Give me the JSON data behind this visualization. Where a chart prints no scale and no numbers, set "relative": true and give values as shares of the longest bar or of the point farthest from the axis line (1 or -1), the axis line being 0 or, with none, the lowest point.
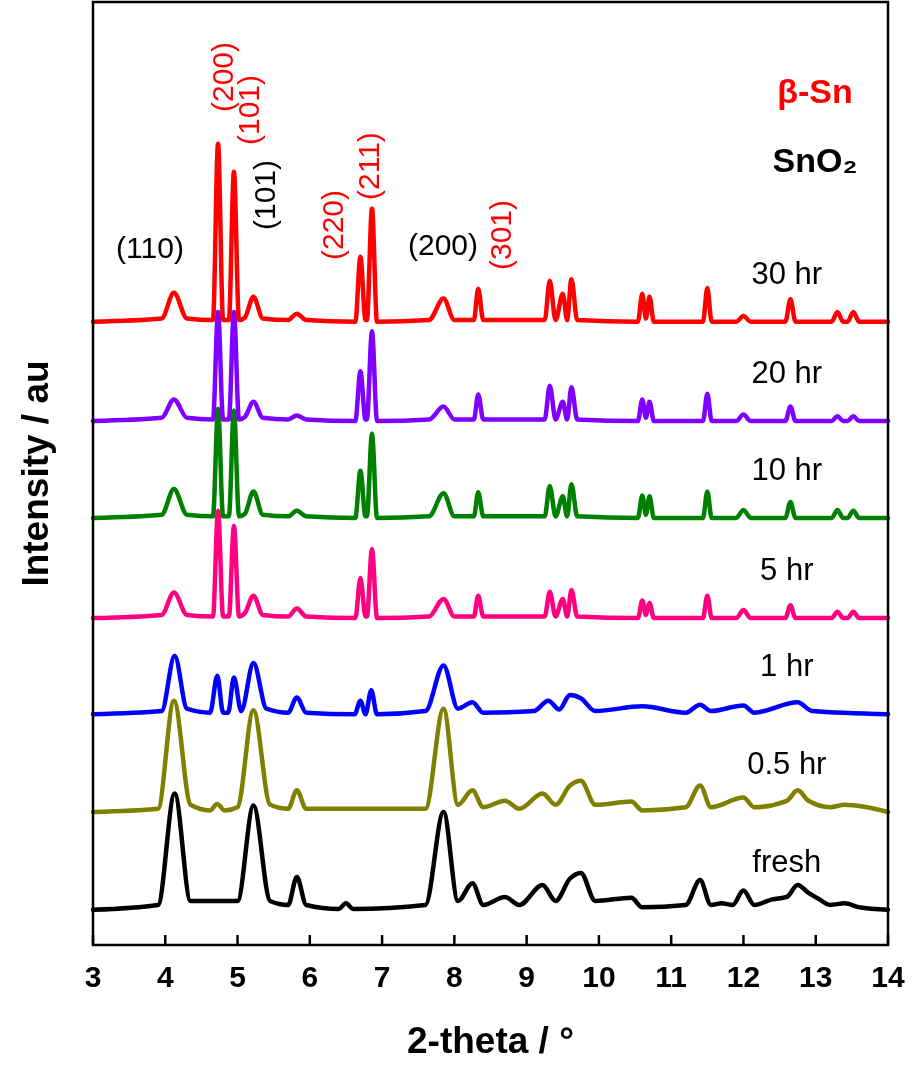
{
  "chart_data": {
    "type": "line",
    "relative": true,
    "xlabel": "2-theta / °",
    "ylabel": "Intensity / au",
    "xlim": [
      3,
      14
    ],
    "xticks": [
      3,
      4,
      5,
      6,
      7,
      8,
      9,
      10,
      11,
      12,
      13,
      14
    ],
    "grid": false,
    "legend": false,
    "marker": "none",
    "line_style": "solid",
    "tick_labels": "x",
    "series": [
      {
        "name": "fresh",
        "color": "#000000",
        "x": [
          3,
          3.9,
          4.13,
          4.35,
          5,
          5.22,
          5.45,
          5.7,
          5.82,
          5.95,
          6.4,
          6.5,
          6.6,
          7.6,
          7.85,
          8.05,
          8.25,
          8.4,
          8.7,
          8.9,
          9.22,
          9.4,
          9.6,
          9.75,
          9.95,
          10.45,
          10.6,
          11.2,
          11.4,
          11.55,
          11.7,
          11.85,
          12,
          12.15,
          12.4,
          12.6,
          12.75,
          12.9,
          13.05,
          13.2,
          13.4,
          13.6,
          14
        ],
        "values": [
          0.044,
          0.05,
          0.189,
          0.055,
          0.055,
          0.174,
          0.055,
          0.05,
          0.085,
          0.05,
          0.045,
          0.052,
          0.045,
          0.05,
          0.166,
          0.055,
          0.077,
          0.05,
          0.06,
          0.05,
          0.075,
          0.055,
          0.083,
          0.09,
          0.055,
          0.059,
          0.047,
          0.05,
          0.081,
          0.05,
          0.052,
          0.05,
          0.068,
          0.05,
          0.057,
          0.06,
          0.075,
          0.065,
          0.057,
          0.05,
          0.052,
          0.047,
          0.044
        ]
      },
      {
        "name": "0.5 hr",
        "color": "#808000",
        "x": [
          3,
          3.9,
          4.12,
          4.35,
          4.62,
          4.72,
          4.82,
          5,
          5.22,
          5.45,
          5.7,
          5.82,
          5.95,
          6.5,
          7.6,
          7.85,
          8.05,
          8.25,
          8.4,
          8.7,
          8.9,
          9.22,
          9.4,
          9.6,
          9.75,
          9.95,
          10.45,
          10.6,
          11.2,
          11.4,
          11.55,
          12,
          12.15,
          12.6,
          12.75,
          12.9,
          13.2,
          13.4,
          14
        ],
        "values": [
          0.166,
          0.17,
          0.305,
          0.175,
          0.168,
          0.176,
          0.168,
          0.172,
          0.293,
          0.175,
          0.17,
          0.193,
          0.17,
          0.17,
          0.17,
          0.295,
          0.175,
          0.193,
          0.172,
          0.18,
          0.17,
          0.189,
          0.175,
          0.199,
          0.205,
          0.175,
          0.179,
          0.168,
          0.172,
          0.199,
          0.172,
          0.184,
          0.172,
          0.18,
          0.193,
          0.18,
          0.172,
          0.175,
          0.166
        ]
      },
      {
        "name": "1 hr",
        "color": "#0000ff",
        "x": [
          3,
          3.95,
          4.13,
          4.3,
          4.62,
          4.72,
          4.8,
          4.87,
          4.95,
          5.05,
          5.22,
          5.4,
          5.7,
          5.82,
          5.95,
          6.62,
          6.7,
          6.77,
          6.85,
          6.93,
          7.6,
          7.85,
          8.05,
          8.25,
          8.4,
          9.1,
          9.3,
          9.45,
          9.6,
          9.75,
          9.95,
          10.6,
          11.2,
          11.4,
          11.55,
          12,
          12.15,
          12.75,
          12.95,
          14
        ],
        "values": [
          0.288,
          0.292,
          0.361,
          0.295,
          0.29,
          0.336,
          0.29,
          0.29,
          0.334,
          0.292,
          0.352,
          0.295,
          0.29,
          0.309,
          0.29,
          0.288,
          0.305,
          0.288,
          0.318,
          0.288,
          0.292,
          0.349,
          0.295,
          0.303,
          0.29,
          0.292,
          0.305,
          0.294,
          0.312,
          0.308,
          0.292,
          0.298,
          0.29,
          0.3,
          0.292,
          0.299,
          0.29,
          0.303,
          0.292,
          0.288
        ]
      },
      {
        "name": "5 hr",
        "color": "#ff0080",
        "x": [
          3,
          3.95,
          4.12,
          4.3,
          4.66,
          4.73,
          4.8,
          4.88,
          4.95,
          5.02,
          5.1,
          5.22,
          5.35,
          5.7,
          5.82,
          5.95,
          6.63,
          6.7,
          6.77,
          6.79,
          6.86,
          6.93,
          7.65,
          7.85,
          8,
          8.27,
          8.33,
          8.4,
          9.25,
          9.32,
          9.4,
          9.5,
          9.56,
          9.62,
          9.7,
          10.54,
          10.6,
          10.65,
          10.7,
          10.76,
          11.44,
          11.5,
          11.56,
          11.9,
          12,
          12.1,
          12.58,
          12.65,
          12.72,
          13.22,
          13.3,
          13.38,
          13.44,
          13.52,
          13.6,
          14
        ],
        "values": [
          0.408,
          0.412,
          0.44,
          0.412,
          0.41,
          0.542,
          0.41,
          0.41,
          0.523,
          0.41,
          0.414,
          0.436,
          0.412,
          0.41,
          0.42,
          0.41,
          0.408,
          0.458,
          0.41,
          0.41,
          0.494,
          0.408,
          0.41,
          0.432,
          0.41,
          0.41,
          0.436,
          0.41,
          0.41,
          0.441,
          0.41,
          0.432,
          0.41,
          0.443,
          0.41,
          0.408,
          0.43,
          0.412,
          0.427,
          0.408,
          0.408,
          0.436,
          0.408,
          0.408,
          0.418,
          0.408,
          0.408,
          0.424,
          0.408,
          0.408,
          0.416,
          0.408,
          0.408,
          0.416,
          0.408,
          0.408
        ]
      },
      {
        "name": "10 hr",
        "color": "#008000",
        "x": [
          3,
          3.95,
          4.12,
          4.3,
          4.66,
          4.73,
          4.8,
          4.88,
          4.95,
          5.02,
          5.1,
          5.22,
          5.35,
          5.7,
          5.82,
          5.95,
          6.63,
          6.7,
          6.77,
          6.79,
          6.86,
          6.93,
          7.65,
          7.85,
          8,
          8.27,
          8.33,
          8.4,
          9.25,
          9.32,
          9.4,
          9.5,
          9.56,
          9.62,
          9.7,
          10.54,
          10.6,
          10.65,
          10.7,
          10.76,
          11.44,
          11.5,
          11.56,
          11.9,
          12,
          12.1,
          12.58,
          12.65,
          12.72,
          13.22,
          13.3,
          13.38,
          13.44,
          13.52,
          13.6,
          14
        ],
        "values": [
          0.533,
          0.537,
          0.569,
          0.537,
          0.535,
          0.669,
          0.535,
          0.535,
          0.667,
          0.535,
          0.538,
          0.566,
          0.537,
          0.535,
          0.542,
          0.535,
          0.533,
          0.592,
          0.535,
          0.535,
          0.638,
          0.533,
          0.535,
          0.564,
          0.535,
          0.535,
          0.565,
          0.535,
          0.535,
          0.573,
          0.535,
          0.56,
          0.535,
          0.575,
          0.535,
          0.533,
          0.561,
          0.537,
          0.56,
          0.533,
          0.533,
          0.566,
          0.533,
          0.533,
          0.543,
          0.533,
          0.533,
          0.553,
          0.533,
          0.533,
          0.543,
          0.533,
          0.533,
          0.542,
          0.533,
          0.533
        ]
      },
      {
        "name": "20 hr",
        "color": "#8000ff",
        "x": [
          3,
          3.95,
          4.12,
          4.3,
          4.66,
          4.73,
          4.8,
          4.88,
          4.95,
          5.02,
          5.1,
          5.22,
          5.35,
          5.7,
          5.82,
          5.95,
          6.63,
          6.7,
          6.77,
          6.79,
          6.86,
          6.93,
          7.65,
          7.85,
          8,
          8.27,
          8.33,
          8.4,
          9.25,
          9.32,
          9.4,
          9.5,
          9.56,
          9.62,
          9.7,
          10.54,
          10.6,
          10.65,
          10.7,
          10.76,
          11.44,
          11.5,
          11.56,
          11.9,
          12,
          12.1,
          12.58,
          12.65,
          12.72,
          13.22,
          13.3,
          13.38,
          13.44,
          13.52,
          13.6,
          14
        ],
        "values": [
          0.654,
          0.658,
          0.681,
          0.658,
          0.656,
          0.79,
          0.656,
          0.656,
          0.79,
          0.656,
          0.659,
          0.678,
          0.658,
          0.656,
          0.661,
          0.656,
          0.654,
          0.716,
          0.656,
          0.656,
          0.766,
          0.654,
          0.656,
          0.672,
          0.656,
          0.656,
          0.687,
          0.656,
          0.656,
          0.698,
          0.656,
          0.678,
          0.656,
          0.696,
          0.656,
          0.654,
          0.681,
          0.658,
          0.678,
          0.654,
          0.654,
          0.688,
          0.654,
          0.654,
          0.662,
          0.654,
          0.654,
          0.672,
          0.654,
          0.654,
          0.66,
          0.654,
          0.654,
          0.66,
          0.654,
          0.654
        ]
      },
      {
        "name": "30 hr",
        "color": "#ff0000",
        "x": [
          3,
          3.95,
          4.12,
          4.3,
          4.66,
          4.73,
          4.8,
          4.88,
          4.95,
          5.02,
          5.1,
          5.22,
          5.35,
          5.7,
          5.82,
          5.95,
          6.63,
          6.7,
          6.77,
          6.79,
          6.86,
          6.93,
          7.65,
          7.85,
          8,
          8.27,
          8.33,
          8.4,
          9.25,
          9.32,
          9.4,
          9.5,
          9.56,
          9.62,
          9.7,
          10.54,
          10.6,
          10.65,
          10.7,
          10.76,
          11.44,
          11.5,
          11.56,
          11.9,
          12,
          12.1,
          12.58,
          12.65,
          12.72,
          13.22,
          13.3,
          13.38,
          13.44,
          13.52,
          13.6,
          14
        ],
        "values": [
          0.778,
          0.782,
          0.814,
          0.782,
          0.78,
          1,
          0.78,
          0.78,
          0.965,
          0.78,
          0.783,
          0.809,
          0.782,
          0.78,
          0.788,
          0.78,
          0.778,
          0.859,
          0.78,
          0.78,
          0.919,
          0.778,
          0.78,
          0.807,
          0.78,
          0.78,
          0.819,
          0.78,
          0.78,
          0.829,
          0.78,
          0.813,
          0.78,
          0.831,
          0.78,
          0.778,
          0.813,
          0.782,
          0.809,
          0.778,
          0.778,
          0.82,
          0.778,
          0.778,
          0.785,
          0.778,
          0.778,
          0.806,
          0.778,
          0.778,
          0.79,
          0.778,
          0.778,
          0.79,
          0.778,
          0.778
        ]
      }
    ],
    "annotations": [
      "(110)",
      "(200)",
      "(101)",
      "(101)",
      "(220)",
      "(211)",
      "(200)",
      "(301)",
      "β-Sn",
      "SnO₂"
    ]
  }
}
